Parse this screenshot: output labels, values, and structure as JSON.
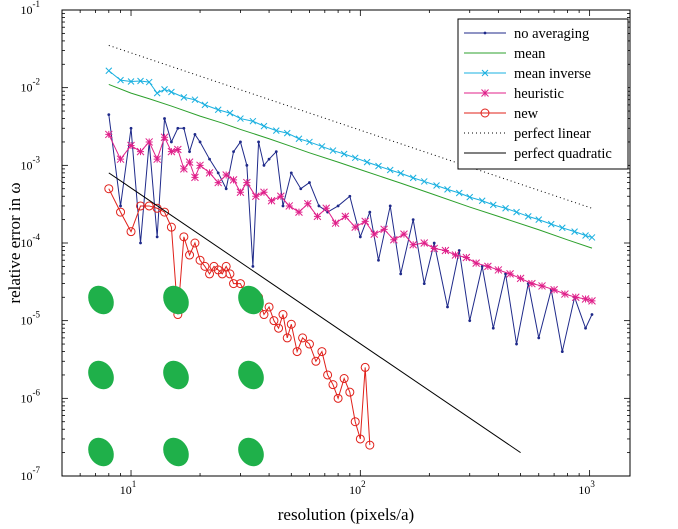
{
  "chart_data": {
    "type": "line",
    "title": "",
    "xlabel": "resolution (pixels/a)",
    "ylabel": "relative error in ω",
    "xscale": "log",
    "yscale": "log",
    "xlim": [
      5,
      1500
    ],
    "ylim": [
      1e-07,
      0.1
    ],
    "x_tick_values": [
      10,
      100,
      1000
    ],
    "x_tick_labels": [
      {
        "base": "10",
        "exp": "1"
      },
      {
        "base": "10",
        "exp": "2"
      },
      {
        "base": "10",
        "exp": "3"
      }
    ],
    "y_tick_values": [
      1e-07,
      1e-06,
      1e-05,
      0.0001,
      0.001,
      0.01,
      0.1
    ],
    "y_tick_labels": [
      {
        "base": "10",
        "exp": "-7"
      },
      {
        "base": "10",
        "exp": "-6"
      },
      {
        "base": "10",
        "exp": "-5"
      },
      {
        "base": "10",
        "exp": "-4"
      },
      {
        "base": "10",
        "exp": "-3"
      },
      {
        "base": "10",
        "exp": "-2"
      },
      {
        "base": "10",
        "exp": "-1"
      }
    ],
    "grid": false,
    "legend_position": "top-right",
    "series": [
      {
        "name": "no averaging",
        "color": "#1f2a8a",
        "marker": "dot",
        "line": "solid",
        "x": [
          8,
          9,
          10,
          11,
          12,
          13,
          14,
          15,
          16,
          17,
          18,
          19,
          20,
          22,
          24,
          26,
          28,
          30,
          32,
          34,
          36,
          38,
          40,
          43,
          46,
          50,
          55,
          60,
          66,
          72,
          80,
          90,
          100,
          110,
          120,
          135,
          150,
          170,
          190,
          210,
          240,
          270,
          300,
          340,
          380,
          430,
          480,
          540,
          600,
          680,
          760,
          860,
          960,
          1024
        ],
        "y": [
          0.0045,
          0.0003,
          0.003,
          0.0001,
          0.002,
          0.00012,
          0.004,
          0.002,
          0.003,
          0.003,
          0.0015,
          0.0025,
          0.002,
          0.0012,
          0.0008,
          0.0005,
          0.0015,
          0.002,
          0.001,
          5e-05,
          0.002,
          0.001,
          0.0012,
          0.0015,
          0.0003,
          0.0008,
          0.0005,
          0.0006,
          0.0003,
          0.00025,
          0.0003,
          0.0004,
          0.00012,
          0.00025,
          6e-05,
          0.0003,
          4e-05,
          0.0002,
          3e-05,
          0.0001,
          1.5e-05,
          8e-05,
          1e-05,
          5e-05,
          8e-06,
          4e-05,
          5e-06,
          3e-05,
          6e-06,
          2.5e-05,
          4e-06,
          2e-05,
          8e-06,
          1.2e-05
        ]
      },
      {
        "name": "mean",
        "color": "#2ca02c",
        "marker": "none",
        "line": "solid",
        "x": [
          8,
          10,
          12,
          15,
          20,
          25,
          30,
          40,
          50,
          60,
          80,
          100,
          150,
          200,
          300,
          400,
          600,
          800,
          1024
        ],
        "y": [
          0.011,
          0.0085,
          0.0072,
          0.0058,
          0.0043,
          0.0035,
          0.0029,
          0.0022,
          0.00175,
          0.00145,
          0.0011,
          0.00088,
          0.00059,
          0.00044,
          0.00029,
          0.00022,
          0.000148,
          0.00011,
          8.6e-05
        ]
      },
      {
        "name": "mean inverse",
        "color": "#1ab0e0",
        "marker": "x",
        "line": "solid",
        "x": [
          8,
          9,
          10,
          11,
          12,
          13,
          14,
          15,
          17,
          19,
          21,
          24,
          27,
          30,
          34,
          38,
          43,
          48,
          54,
          60,
          68,
          76,
          85,
          95,
          107,
          120,
          135,
          150,
          170,
          190,
          215,
          240,
          270,
          300,
          340,
          380,
          430,
          480,
          540,
          600,
          680,
          760,
          860,
          960,
          1024
        ],
        "y": [
          0.0165,
          0.0125,
          0.012,
          0.0122,
          0.0118,
          0.0085,
          0.0095,
          0.0088,
          0.0075,
          0.007,
          0.006,
          0.0052,
          0.0047,
          0.004,
          0.0037,
          0.0032,
          0.0028,
          0.0026,
          0.0022,
          0.002,
          0.00175,
          0.00155,
          0.0014,
          0.00125,
          0.0011,
          0.00098,
          0.00087,
          0.00079,
          0.00069,
          0.00062,
          0.00055,
          0.00049,
          0.00044,
          0.00039,
          0.00035,
          0.00031,
          0.00028,
          0.00025,
          0.00022,
          0.0002,
          0.000175,
          0.000157,
          0.00014,
          0.000125,
          0.000118
        ]
      },
      {
        "name": "heuristic",
        "color": "#e0208a",
        "marker": "star",
        "line": "solid",
        "x": [
          8,
          9,
          10,
          11,
          12,
          13,
          14,
          15,
          16,
          17,
          18,
          19,
          20,
          22,
          24,
          26,
          28,
          30,
          32,
          35,
          38,
          41,
          45,
          49,
          54,
          59,
          65,
          71,
          78,
          86,
          95,
          105,
          115,
          127,
          140,
          155,
          170,
          190,
          210,
          235,
          260,
          290,
          320,
          360,
          400,
          450,
          500,
          560,
          620,
          700,
          780,
          870,
          960,
          1024
        ],
        "y": [
          0.0025,
          0.0012,
          0.0018,
          0.0015,
          0.002,
          0.0012,
          0.0023,
          0.0015,
          0.0016,
          0.0009,
          0.0011,
          0.0007,
          0.001,
          0.0008,
          0.0006,
          0.00075,
          0.00065,
          0.00045,
          0.0006,
          0.0004,
          0.00045,
          0.00035,
          0.0004,
          0.0003,
          0.00025,
          0.00032,
          0.00022,
          0.00028,
          0.00018,
          0.00022,
          0.00016,
          0.00019,
          0.00013,
          0.00015,
          0.00011,
          0.00013,
          9.5e-05,
          0.0001,
          8.5e-05,
          8e-05,
          7e-05,
          6.5e-05,
          5.5e-05,
          5e-05,
          4.5e-05,
          4e-05,
          3.5e-05,
          3e-05,
          2.8e-05,
          2.5e-05,
          2.2e-05,
          2e-05,
          1.9e-05,
          1.8e-05
        ]
      },
      {
        "name": "new",
        "color": "#e0201a",
        "marker": "circle",
        "line": "solid",
        "x": [
          8,
          9,
          10,
          11,
          12,
          13,
          14,
          15,
          16,
          17,
          18,
          19,
          20,
          21,
          22,
          23,
          24,
          25,
          26,
          27,
          28,
          30,
          32,
          34,
          36,
          38,
          40,
          42,
          44,
          46,
          48,
          50,
          53,
          56,
          60,
          64,
          68,
          72,
          76,
          80,
          85,
          90,
          95,
          100,
          105,
          110
        ],
        "y": [
          0.0005,
          0.00025,
          0.00014,
          0.0003,
          0.0003,
          0.00028,
          0.00025,
          0.00016,
          1.2e-05,
          0.00012,
          7e-05,
          0.0001,
          6e-05,
          5e-05,
          4e-05,
          5e-05,
          4.5e-05,
          4e-05,
          5e-05,
          4e-05,
          3e-05,
          3e-05,
          2e-05,
          1.5e-05,
          2e-05,
          1.2e-05,
          1.5e-05,
          1e-05,
          8e-06,
          1.2e-05,
          6e-06,
          9e-06,
          4e-06,
          6e-06,
          5e-06,
          3e-06,
          4e-06,
          2e-06,
          1.5e-06,
          1e-06,
          1.8e-06,
          1.2e-06,
          5e-07,
          3e-07,
          2.5e-06,
          2.5e-07
        ]
      },
      {
        "name": "perfect linear",
        "color": "#000000",
        "marker": "none",
        "line": "dotted",
        "x": [
          8,
          1024
        ],
        "y": [
          0.035,
          0.00028
        ]
      },
      {
        "name": "perfect quadratic",
        "color": "#000000",
        "marker": "none",
        "line": "solid",
        "x": [
          8,
          500
        ],
        "y": [
          0.0008,
          2e-07
        ]
      }
    ],
    "inset_shapes": {
      "description_visible": false,
      "rows": 3,
      "cols": 3,
      "color": "#1fb04a"
    }
  }
}
